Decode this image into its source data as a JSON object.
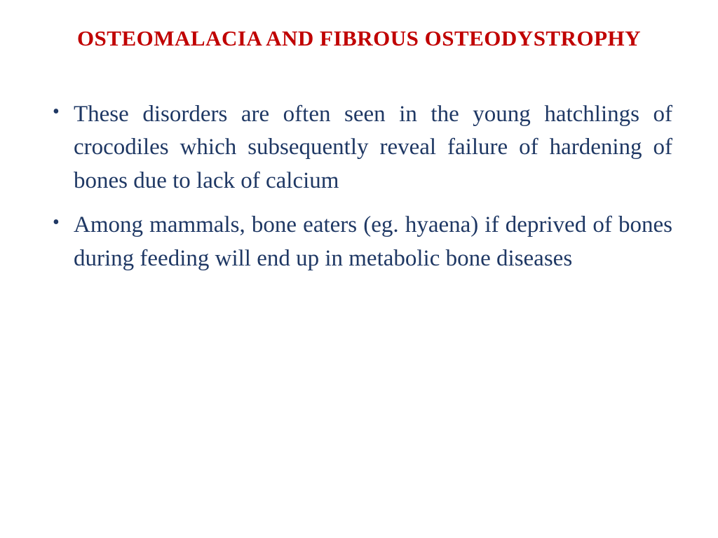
{
  "slide": {
    "title": "OSTEOMALACIA AND FIBROUS OSTEODYSTROPHY",
    "bullets": [
      "These disorders are often seen in the young hatchlings of crocodiles which subsequently reveal failure of hardening of bones due to lack of calcium",
      "Among mammals, bone eaters (eg. hyaena) if deprived of bones during feeding will end up in metabolic bone diseases"
    ]
  },
  "styling": {
    "title_color": "#c00000",
    "body_color": "#1f3864",
    "background_color": "#ffffff",
    "title_fontsize": 31,
    "body_fontsize": 33,
    "title_weight": "bold",
    "font_family": "Georgia, serif"
  }
}
